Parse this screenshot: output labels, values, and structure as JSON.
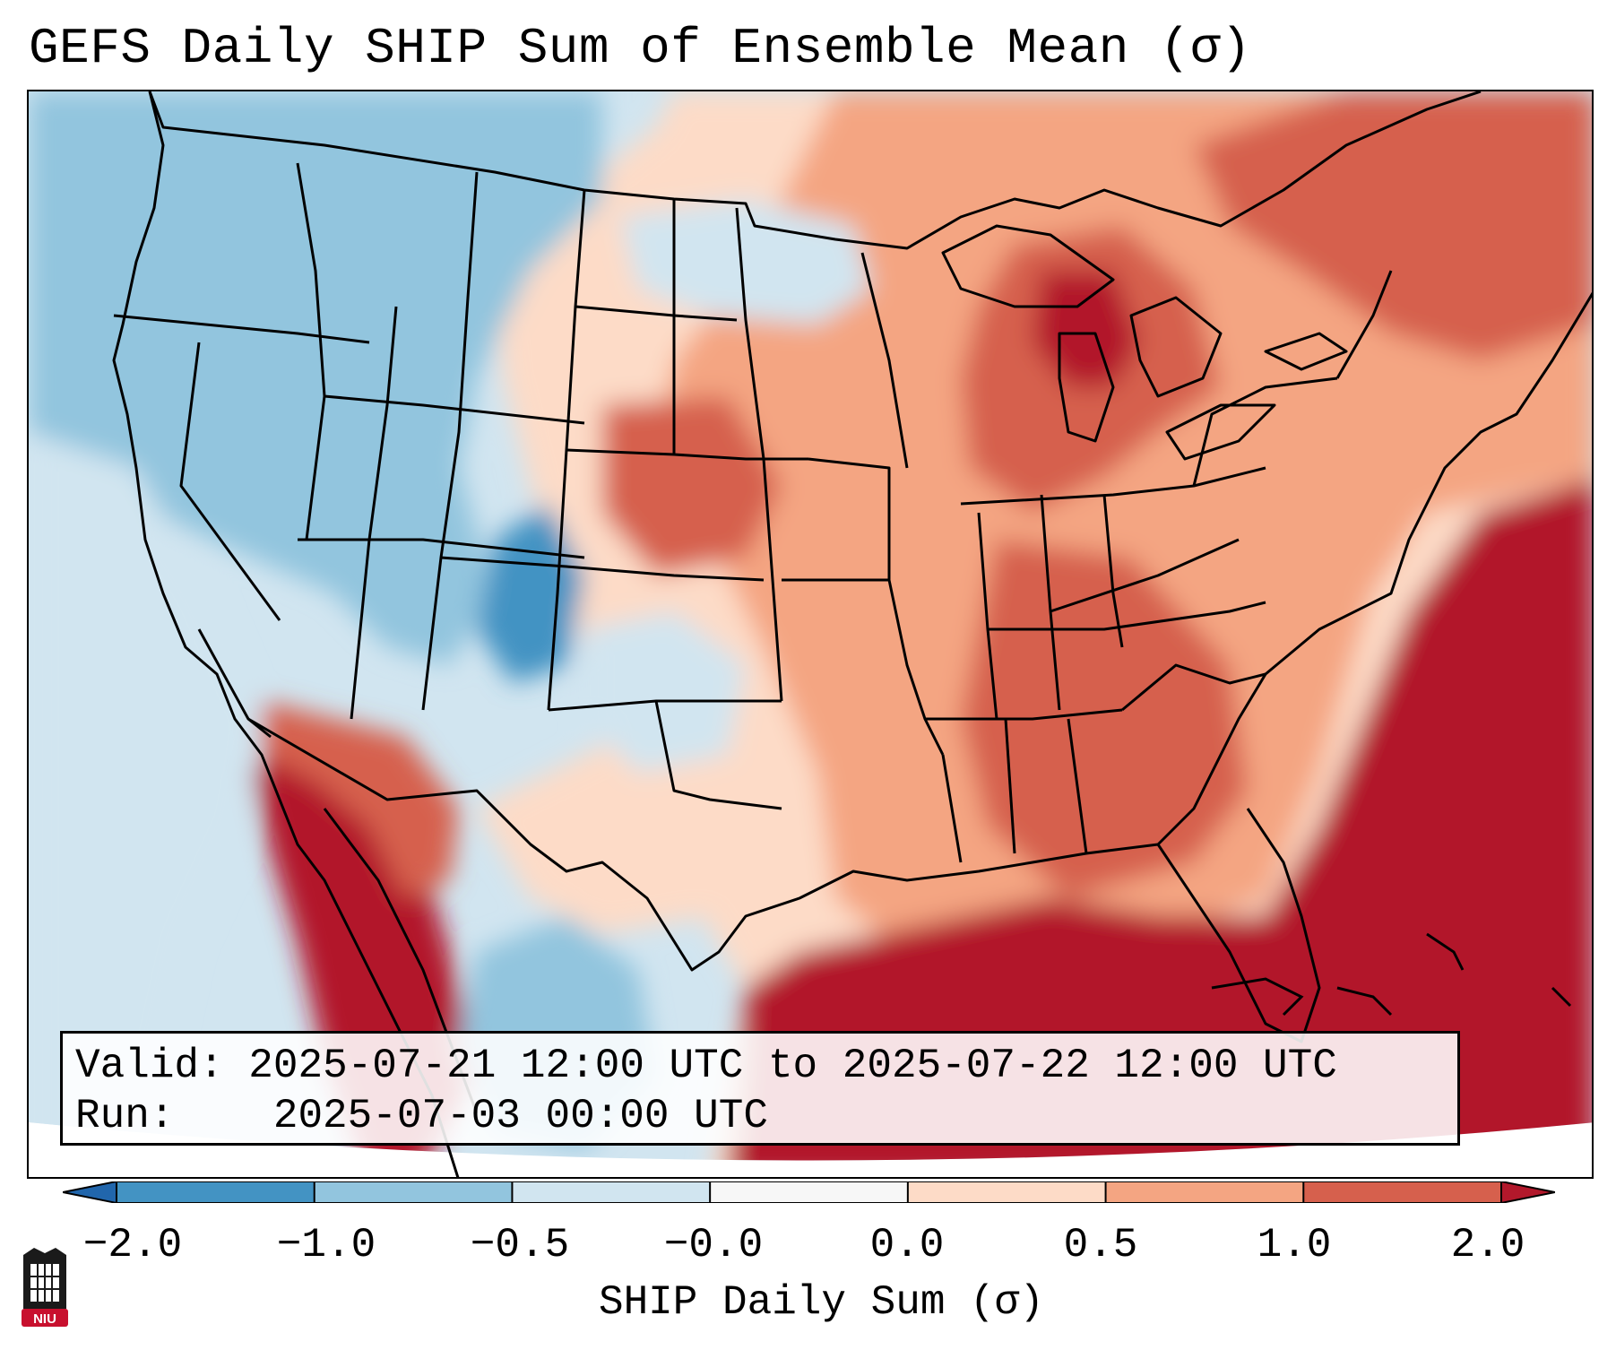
{
  "title": "GEFS Daily SHIP Sum of Ensemble Mean (σ)",
  "info": {
    "valid_label": "Valid:",
    "valid_value": "2025-07-21 12:00 UTC to 2025-07-22 12:00 UTC",
    "run_label": "Run:",
    "run_value": "2025-07-03 00:00 UTC"
  },
  "colorbar": {
    "label": "SHIP Daily Sum (σ)",
    "ticks": [
      "−2.0",
      "−1.0",
      "−0.5",
      "−0.0",
      "0.0",
      "0.5",
      "1.0",
      "2.0"
    ],
    "colors": [
      "#2166ac",
      "#4393c3",
      "#92c5de",
      "#d1e5f0",
      "#f7f7f7",
      "#fddbc7",
      "#f4a582",
      "#d6604d",
      "#b2182b"
    ],
    "extend": "both"
  },
  "map": {
    "region": "Contiguous United States",
    "field_colors": {
      "strong_negative": "#4393c3",
      "negative": "#92c5de",
      "slight_negative": "#d1e5f0",
      "slight_positive": "#fddbc7",
      "positive": "#f4a582",
      "strong_positive": "#d6604d",
      "very_strong_positive": "#b2182b"
    }
  },
  "logo": {
    "text": "NIU",
    "color": "#c8102e"
  }
}
